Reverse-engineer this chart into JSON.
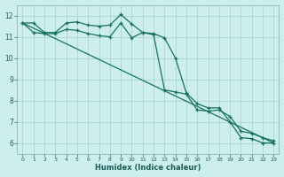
{
  "xlabel": "Humidex (Indice chaleur)",
  "background_color": "#cceeed",
  "grid_color": "#aad4d2",
  "line_color": "#1a7060",
  "xlim": [
    -0.5,
    23.5
  ],
  "ylim": [
    5.5,
    12.5
  ],
  "yticks": [
    6,
    7,
    8,
    9,
    10,
    11,
    12
  ],
  "xticks": [
    0,
    1,
    2,
    3,
    4,
    5,
    6,
    7,
    8,
    9,
    10,
    11,
    12,
    13,
    14,
    15,
    16,
    17,
    18,
    19,
    20,
    21,
    22,
    23
  ],
  "series1_x": [
    0,
    1,
    2,
    3,
    4,
    5,
    6,
    7,
    8,
    9,
    10,
    11,
    12,
    13,
    14,
    15,
    16,
    17,
    18,
    19,
    20,
    21,
    22,
    23
  ],
  "series1_y": [
    11.65,
    11.65,
    11.2,
    11.2,
    11.65,
    11.7,
    11.55,
    11.5,
    11.55,
    12.05,
    11.6,
    11.2,
    11.15,
    10.95,
    10.0,
    8.35,
    7.85,
    7.65,
    7.65,
    7.0,
    6.25,
    6.2,
    6.0,
    6.0
  ],
  "series2_x": [
    0,
    1,
    2,
    3,
    4,
    5,
    6,
    7,
    8,
    9,
    10,
    11,
    12,
    13,
    14,
    15,
    16,
    17,
    18,
    19,
    20,
    21,
    22,
    23
  ],
  "series2_y": [
    11.65,
    11.2,
    11.15,
    11.15,
    11.35,
    11.3,
    11.15,
    11.05,
    11.0,
    11.65,
    10.95,
    11.2,
    11.1,
    8.5,
    8.4,
    8.3,
    7.55,
    7.5,
    7.55,
    7.25,
    6.55,
    6.45,
    6.25,
    6.1
  ],
  "series3_x": [
    0,
    23
  ],
  "series3_y": [
    11.65,
    6.0
  ]
}
